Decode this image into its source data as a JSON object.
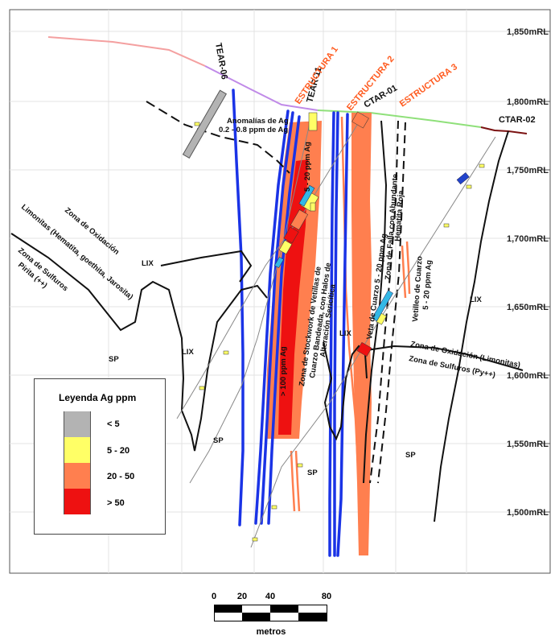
{
  "elevation_labels": [
    "1,850mRL",
    "1,800mRL",
    "1,750mRL",
    "1,700mRL",
    "1,650mRL",
    "1,600mRL",
    "1,550mRL",
    "1,500mRL"
  ],
  "drillholes": [
    {
      "id": "tear-06",
      "label": "TEAR-06"
    },
    {
      "id": "tear-11",
      "label": "TEAR-11"
    },
    {
      "id": "ctar-01",
      "label": "CTAR-01"
    },
    {
      "id": "ctar-02",
      "label": "CTAR-02"
    }
  ],
  "structures": [
    "ESTRUCTURA 1",
    "ESTRUCTURA 2",
    "ESTRUCTURA 3"
  ],
  "annotations": {
    "anomalias_line1": "Anomalías de Ag",
    "anomalias_line2": "0.2 - 0.8 ppm de Ag",
    "ag_5_20_vertical": "5 - 20 ppm Ag",
    "ag_gt100": "> 100 ppm Ag",
    "stockwork_line1": "Zona de Stockwork de Vetillas de",
    "stockwork_line2": "Cuarzo Bandeada, con Halos de",
    "stockwork_line3": "Alteración Sericítica",
    "veta_cuarzo": "Veta de Cuarzo 5 - 20 ppm Ag",
    "falla_line1": "Zona de Falla con Abundante",
    "falla_line2": "Hematita Roja",
    "vetilleo_line1": "Vetilleo de Cuarzo",
    "vetilleo_line2": "5 - 20 ppm Ag",
    "oxid_left_line1": "Zona de Oxidación",
    "oxid_left_line2": "Limonitas (Hematita, goethita, Jarosita)",
    "sulf_left_line1": "Zona de Sulfuros",
    "sulf_left_line2": "Pirita (++)",
    "oxid_right": "Zona de Oxidación (Limonitas)",
    "sulf_right": "Zona de Sulfuros (Py++)",
    "lix": "LIX",
    "sp": "SP"
  },
  "legend": {
    "title": "Leyenda Ag ppm",
    "items": [
      {
        "label": "< 5",
        "color": "#b3b3b3"
      },
      {
        "label": "5 - 20",
        "color": "#ffff66"
      },
      {
        "label": "20 - 50",
        "color": "#ff7f4f"
      },
      {
        "label": "> 50",
        "color": "#ee1111"
      }
    ]
  },
  "scale_bar": {
    "ticks": [
      "0",
      "20",
      "40",
      "80"
    ],
    "unit": "metros"
  },
  "colors": {
    "structure_label": "#ff5a1e",
    "blue_structure": "#1a33e6",
    "orange_zone": "#ff7f4f",
    "red_zone": "#ee1111",
    "grid": "#e5e5e5"
  }
}
